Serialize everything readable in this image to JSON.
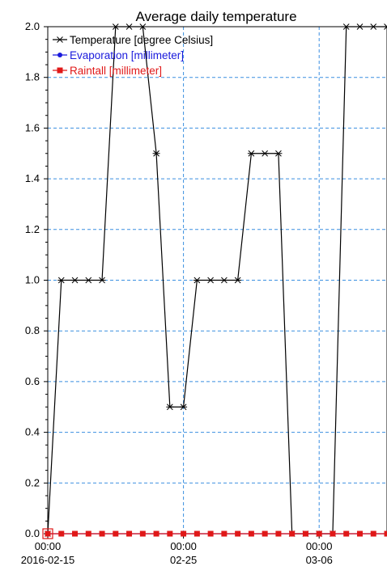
{
  "chart_data": {
    "type": "line",
    "title": "Average daily temperature",
    "xlabel": "",
    "ylabel": "",
    "ylim": [
      0,
      2.0
    ],
    "y_ticks": [
      0.0,
      0.2,
      0.4,
      0.6,
      0.8,
      1.0,
      1.2,
      1.4,
      1.6,
      1.8,
      2.0
    ],
    "y_tick_labels": [
      "0.0",
      "0.2",
      "0.4",
      "0.6",
      "0.8",
      "1.0",
      "1.2",
      "1.4",
      "1.6",
      "1.8",
      "2.0"
    ],
    "xlim": [
      "2016-02-15",
      "2016-03-11"
    ],
    "x_ticks": [
      {
        "date": "2016-02-15",
        "time": "00:00",
        "label": "2016-02-15"
      },
      {
        "date": "2016-02-25",
        "time": "00:00",
        "label": "02-25"
      },
      {
        "date": "2016-03-06",
        "time": "00:00",
        "label": "03-06"
      }
    ],
    "grid": true,
    "grid_color": "#3a8fe0",
    "legend_position": "top-left",
    "series": [
      {
        "name": "Temperature [degree Celsius]",
        "color": "#000000",
        "marker": "star",
        "x": [
          "2016-02-15",
          "2016-02-16",
          "2016-02-17",
          "2016-02-18",
          "2016-02-19",
          "2016-02-20",
          "2016-02-21",
          "2016-02-22",
          "2016-02-23",
          "2016-02-24",
          "2016-02-25",
          "2016-02-26",
          "2016-02-27",
          "2016-02-28",
          "2016-02-29",
          "2016-03-01",
          "2016-03-02",
          "2016-03-03",
          "2016-03-04",
          "2016-03-05",
          "2016-03-06",
          "2016-03-07",
          "2016-03-08",
          "2016-03-09",
          "2016-03-10",
          "2016-03-11"
        ],
        "values": [
          0.0,
          1.0,
          1.0,
          1.0,
          1.0,
          2.0,
          2.0,
          2.0,
          1.5,
          0.5,
          0.5,
          1.0,
          1.0,
          1.0,
          1.0,
          1.5,
          1.5,
          1.5,
          0.0,
          0.0,
          0.0,
          0.0,
          2.0,
          2.0,
          2.0,
          2.0
        ]
      },
      {
        "name": "Evaporation [millimeter]",
        "color": "#1a1adc",
        "marker": "circle",
        "x": [
          "2016-02-15",
          "2016-02-16",
          "2016-02-17",
          "2016-02-18",
          "2016-02-19",
          "2016-02-20",
          "2016-02-21",
          "2016-02-22",
          "2016-02-23",
          "2016-02-24",
          "2016-02-25",
          "2016-02-26",
          "2016-02-27",
          "2016-02-28",
          "2016-02-29",
          "2016-03-01",
          "2016-03-02",
          "2016-03-03",
          "2016-03-04",
          "2016-03-05",
          "2016-03-06",
          "2016-03-07",
          "2016-03-08",
          "2016-03-09",
          "2016-03-10",
          "2016-03-11"
        ],
        "values": [
          0,
          0,
          0,
          0,
          0,
          0,
          0,
          0,
          0,
          0,
          0,
          0,
          0,
          0,
          0,
          0,
          0,
          0,
          0,
          0,
          0,
          0,
          0,
          0,
          0,
          0
        ]
      },
      {
        "name": "Raintall [millimeter]",
        "color": "#e01818",
        "marker": "square",
        "x": [
          "2016-02-15",
          "2016-02-16",
          "2016-02-17",
          "2016-02-18",
          "2016-02-19",
          "2016-02-20",
          "2016-02-21",
          "2016-02-22",
          "2016-02-23",
          "2016-02-24",
          "2016-02-25",
          "2016-02-26",
          "2016-02-27",
          "2016-02-28",
          "2016-02-29",
          "2016-03-01",
          "2016-03-02",
          "2016-03-03",
          "2016-03-04",
          "2016-03-05",
          "2016-03-06",
          "2016-03-07",
          "2016-03-08",
          "2016-03-09",
          "2016-03-10",
          "2016-03-11"
        ],
        "values": [
          0,
          0,
          0,
          0,
          0,
          0,
          0,
          0,
          0,
          0,
          0,
          0,
          0,
          0,
          0,
          0,
          0,
          0,
          0,
          0,
          0,
          0,
          0,
          0,
          0,
          0
        ]
      }
    ]
  }
}
